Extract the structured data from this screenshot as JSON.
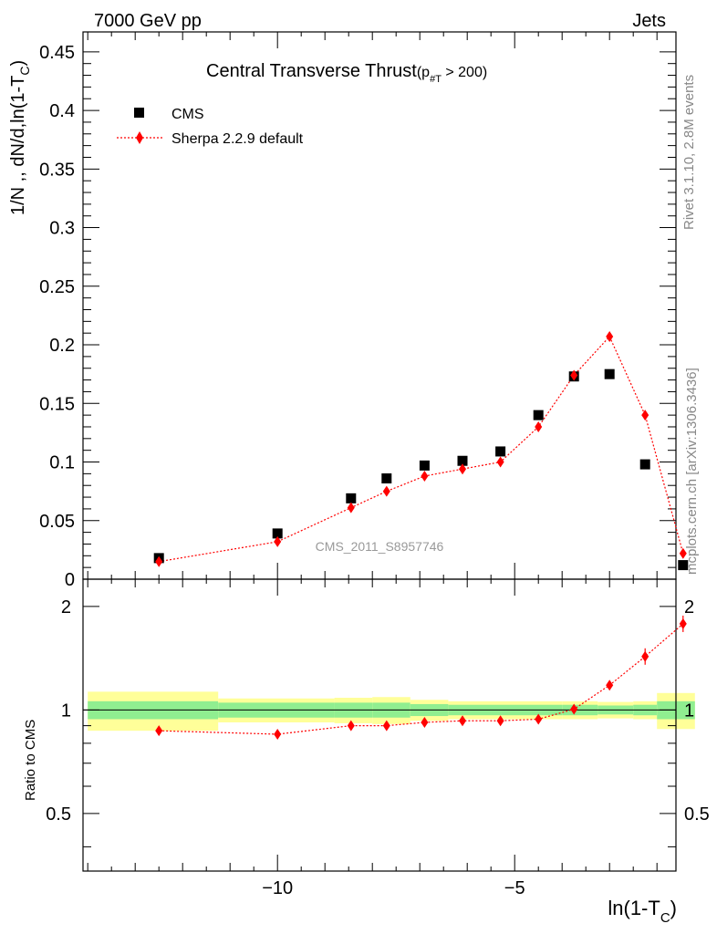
{
  "header": {
    "left": "7000 GeV pp",
    "right": "Jets"
  },
  "side_labels": {
    "rivet": "Rivet 3.1.10,  2.8M events",
    "mcplots": "mcplots.cern.ch [arXiv:1306.3436]"
  },
  "chart_data": {
    "type": "scatter",
    "title": "Central Transverse Thrust",
    "title_cut": "(p",
    "title_cut_sub": "#T",
    "title_cut_rest": " > 200)",
    "ylabel_main": "1/N ,, dN/d,ln(1-T",
    "ylabel_main_sub": "C",
    "ylabel_main_close": ")",
    "ylabel_ratio": "Ratio to CMS",
    "xlabel_main": "ln(1-T",
    "xlabel_sub": "C",
    "xlabel_close": ")",
    "watermark": "CMS_2011_S8957746",
    "xlim": [
      -14.1,
      -1.6
    ],
    "ylim_main": [
      0,
      0.467
    ],
    "ylim_ratio": [
      0.34,
      2.4
    ],
    "ratio_scale": "log",
    "x_ticks": [
      -10,
      -5
    ],
    "x_tick_labels": [
      "−10",
      "−5"
    ],
    "y_ticks_main": [
      0,
      0.05,
      0.1,
      0.15,
      0.2,
      0.25,
      0.3,
      0.35,
      0.4,
      0.45
    ],
    "y_tick_labels_main": [
      "0",
      "0.05",
      "0.1",
      "0.15",
      "0.2",
      "0.25",
      "0.3",
      "0.35",
      "0.4",
      "0.45"
    ],
    "y_ticks_ratio": [
      0.5,
      1,
      2
    ],
    "y_tick_labels_ratio": [
      "0.5",
      "1",
      "2"
    ],
    "legend": {
      "position": "top-left",
      "entries": [
        "CMS",
        "Sherpa 2.2.9 default"
      ]
    },
    "bin_edges": [
      -14.0,
      -11.25,
      -8.8,
      -8.0,
      -7.2,
      -6.4,
      -5.6,
      -4.85,
      -4.0,
      -3.25,
      -2.5,
      -2.0,
      -1.2
    ],
    "series": [
      {
        "name": "CMS",
        "marker": "square",
        "color": "#000000",
        "x": [
          -12.5,
          -10.0,
          -8.45,
          -7.7,
          -6.9,
          -6.1,
          -5.3,
          -4.5,
          -3.75,
          -3.0,
          -2.25,
          -1.45
        ],
        "y": [
          0.018,
          0.039,
          0.069,
          0.086,
          0.097,
          0.101,
          0.109,
          0.14,
          0.173,
          0.175,
          0.098,
          0.012
        ]
      },
      {
        "name": "Sherpa 2.2.9 default",
        "marker": "diamond",
        "color": "#ff0000",
        "x": [
          -12.5,
          -10.0,
          -8.45,
          -7.7,
          -6.9,
          -6.1,
          -5.3,
          -4.5,
          -3.75,
          -3.0,
          -2.25,
          -1.45
        ],
        "y": [
          0.015,
          0.032,
          0.061,
          0.075,
          0.088,
          0.094,
          0.1,
          0.13,
          0.174,
          0.207,
          0.14,
          0.022
        ],
        "ratio": [
          0.87,
          0.85,
          0.9,
          0.9,
          0.92,
          0.93,
          0.93,
          0.94,
          1.005,
          1.18,
          1.43,
          1.78
        ]
      }
    ],
    "band_inner_half_width": [
      0.06,
      0.05,
      0.05,
      0.05,
      0.04,
      0.035,
      0.035,
      0.035,
      0.035,
      0.03,
      0.035,
      0.06
    ],
    "band_outer_half_width": [
      0.13,
      0.08,
      0.085,
      0.09,
      0.07,
      0.06,
      0.06,
      0.06,
      0.06,
      0.055,
      0.06,
      0.12
    ],
    "band_inner_color": "#90ee90",
    "band_outer_color": "#ffff99"
  }
}
